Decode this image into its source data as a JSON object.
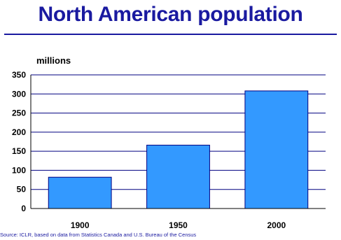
{
  "title": "North American population",
  "source": "Source: ICLR, based on data from Statistics Canada and U.S. Bureau of the Census",
  "colors": {
    "title": "#1a1aa0",
    "bar": "#3399ff",
    "bar_stroke": "#000080",
    "grid": "#000080"
  },
  "chart_data": {
    "type": "bar",
    "categories": [
      "1900",
      "1950",
      "2000"
    ],
    "values": [
      82,
      166,
      308
    ],
    "ylabel": "millions",
    "ylim": [
      0,
      350
    ],
    "yticks": [
      0,
      50,
      100,
      150,
      200,
      250,
      300,
      350
    ],
    "grid": true,
    "legend": "none"
  }
}
